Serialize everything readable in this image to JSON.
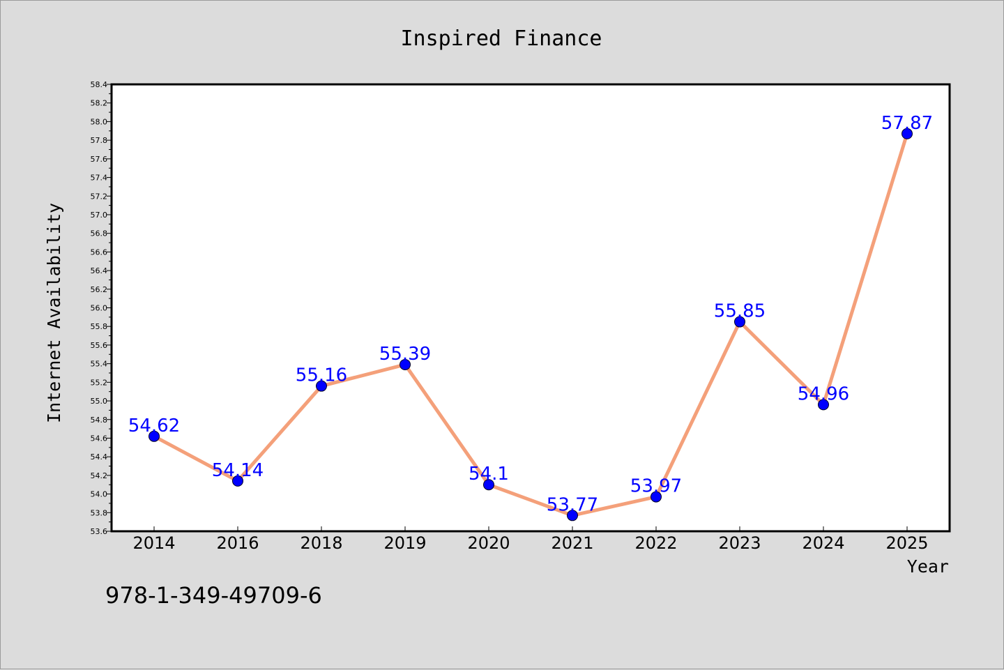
{
  "chart_data": {
    "type": "line",
    "title": "Inspired Finance",
    "xlabel": "Year",
    "ylabel": "Internet Availability",
    "categories": [
      "2014",
      "2016",
      "2018",
      "2019",
      "2020",
      "2021",
      "2022",
      "2023",
      "2024",
      "2025"
    ],
    "values": [
      54.62,
      54.14,
      55.16,
      55.39,
      54.1,
      53.77,
      53.97,
      55.85,
      54.96,
      57.87
    ],
    "data_labels": [
      "54.62",
      "54.14",
      "55.16",
      "55.39",
      "54.1",
      "53.77",
      "53.97",
      "55.85",
      "54.96",
      "57.87"
    ],
    "ylim": [
      53.6,
      58.4
    ],
    "yticks": [
      "53.6",
      "53.8",
      "54.0",
      "54.2",
      "54.4",
      "54.6",
      "54.8",
      "55.0",
      "55.2",
      "55.4",
      "55.6",
      "55.8",
      "56.0",
      "56.2",
      "56.4",
      "56.6",
      "56.8",
      "57.0",
      "57.2",
      "57.4",
      "57.6",
      "57.8",
      "58.0",
      "58.2",
      "58.4"
    ],
    "grid": false,
    "line_color": "#f4a07a",
    "marker_color": "#0000ff",
    "label_color": "#0000ff",
    "plot_background": "#ffffff",
    "page_background": "#dcdcdc"
  },
  "footer": {
    "code": "978-1-349-49709-6"
  }
}
